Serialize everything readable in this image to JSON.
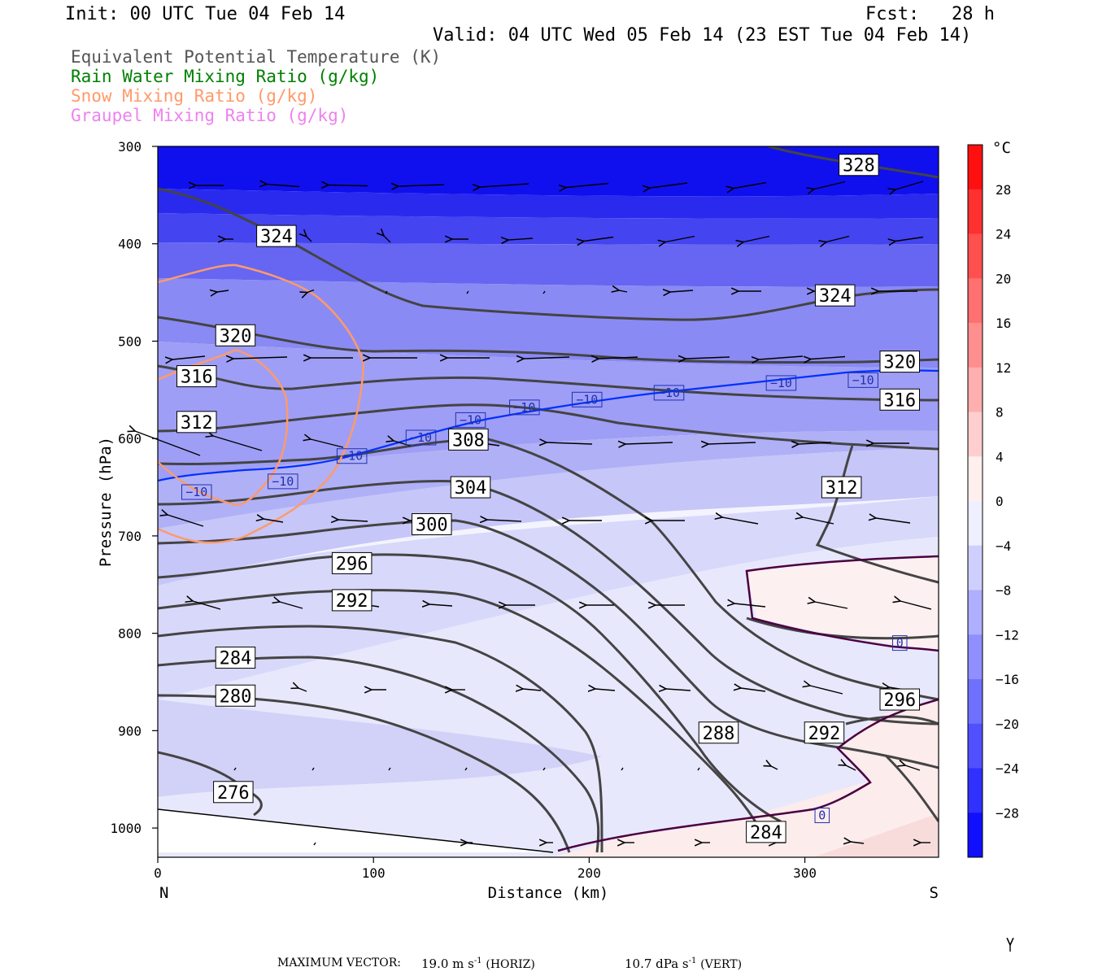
{
  "header": {
    "init": "Init: 00 UTC Tue 04 Feb 14",
    "fcst": "Fcst:   28 h",
    "valid": "Valid: 04 UTC Wed 05 Feb 14 (23 EST Tue 04 Feb 14)"
  },
  "legend": [
    {
      "text": "Equivalent Potential Temperature (K)",
      "color": "#555555"
    },
    {
      "text": "Rain Water Mixing Ratio (g/kg)",
      "color": "#008000"
    },
    {
      "text": "Snow Mixing Ratio (g/kg)",
      "color": "#ff9a6a"
    },
    {
      "text": "Graupel Mixing Ratio (g/kg)",
      "color": "#ee82ee"
    }
  ],
  "footer": {
    "label": "MAXIMUM VECTOR:",
    "horiz": "19.0 m s",
    "horiz_sup": "-1",
    "horiz_tag": "(HORIZ)",
    "vert": "10.7 dPa s",
    "vert_sup": "-1",
    "vert_tag": "(VERT)"
  },
  "chart_data": {
    "type": "cross-section",
    "xlabel": "Distance (km)",
    "ylabel": "Pressure (hPa)",
    "xlim": [
      0,
      362
    ],
    "ylim": [
      300,
      1030
    ],
    "x_ticks": [
      "0",
      "100",
      "200",
      "300"
    ],
    "x_end_labels": {
      "left": "N",
      "right": "S"
    },
    "y_ticks": [
      "300",
      "400",
      "500",
      "600",
      "700",
      "800",
      "900",
      "1000"
    ],
    "colorbar": {
      "unit": "°C",
      "ticks": [
        "28",
        "24",
        "20",
        "16",
        "12",
        "8",
        "4",
        "0",
        "−4",
        "−8",
        "−12",
        "−16",
        "−20",
        "−24",
        "−28"
      ],
      "range": [
        -32,
        32
      ],
      "cold_color": "#0000ff",
      "warm_color": "#ff0000"
    },
    "theta_e_labels": [
      {
        "text": "328",
        "x": 325,
        "p": 319
      },
      {
        "text": "324",
        "x": 55,
        "p": 392
      },
      {
        "text": "324",
        "x": 314,
        "p": 453
      },
      {
        "text": "320",
        "x": 36,
        "p": 494
      },
      {
        "text": "320",
        "x": 344,
        "p": 521
      },
      {
        "text": "316",
        "x": 18,
        "p": 536
      },
      {
        "text": "316",
        "x": 344,
        "p": 560
      },
      {
        "text": "312",
        "x": 18,
        "p": 583
      },
      {
        "text": "312",
        "x": 317,
        "p": 650
      },
      {
        "text": "308",
        "x": 144,
        "p": 601
      },
      {
        "text": "304",
        "x": 145,
        "p": 650
      },
      {
        "text": "300",
        "x": 127,
        "p": 688
      },
      {
        "text": "296",
        "x": 90,
        "p": 728
      },
      {
        "text": "296",
        "x": 344,
        "p": 868
      },
      {
        "text": "292",
        "x": 90,
        "p": 766
      },
      {
        "text": "292",
        "x": 309,
        "p": 902
      },
      {
        "text": "288",
        "x": 260,
        "p": 902
      },
      {
        "text": "284",
        "x": 36,
        "p": 825
      },
      {
        "text": "284",
        "x": 282,
        "p": 1004
      },
      {
        "text": "280",
        "x": 36,
        "p": 864
      },
      {
        "text": "276",
        "x": 35,
        "p": 963
      }
    ],
    "isotherm_labels": [
      {
        "text": "−10",
        "x": 18,
        "p": 655
      },
      {
        "text": "−10",
        "x": 58,
        "p": 644
      },
      {
        "text": "−10",
        "x": 90,
        "p": 618
      },
      {
        "text": "−10",
        "x": 122,
        "p": 599
      },
      {
        "text": "−10",
        "x": 145,
        "p": 581
      },
      {
        "text": "−10",
        "x": 170,
        "p": 568
      },
      {
        "text": "−10",
        "x": 199,
        "p": 560
      },
      {
        "text": "−10",
        "x": 237,
        "p": 553
      },
      {
        "text": "−10",
        "x": 289,
        "p": 543
      },
      {
        "text": "−10",
        "x": 327,
        "p": 540
      },
      {
        "text": "0",
        "x": 344,
        "p": 810
      },
      {
        "text": "0",
        "x": 308,
        "p": 987
      }
    ]
  }
}
